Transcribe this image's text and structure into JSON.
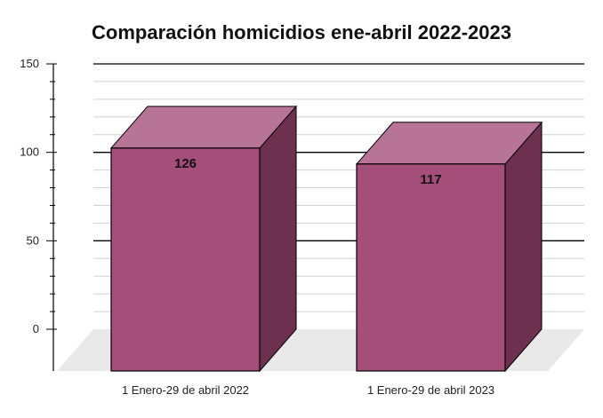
{
  "chart_data": {
    "type": "bar",
    "title": "Comparación homicidios ene-abril 2022-2023",
    "categories": [
      "1 Enero-29 de abril 2022",
      "1 Enero-29 de abril 2023"
    ],
    "values": [
      126,
      117
    ],
    "data_labels": [
      "126",
      "117"
    ],
    "y_ticks": [
      "0",
      "50",
      "100",
      "150"
    ],
    "ylim": [
      0,
      150
    ],
    "xlabel": "",
    "ylabel": "",
    "grid": true,
    "style": "3d-column",
    "colors": {
      "bar_front": "#a54e79",
      "bar_top": "#b87496",
      "bar_side": "#6d314f",
      "floor": "#e9e9e9",
      "gridline_major": "#000000",
      "gridline_minor": "#d2d2d2"
    }
  }
}
